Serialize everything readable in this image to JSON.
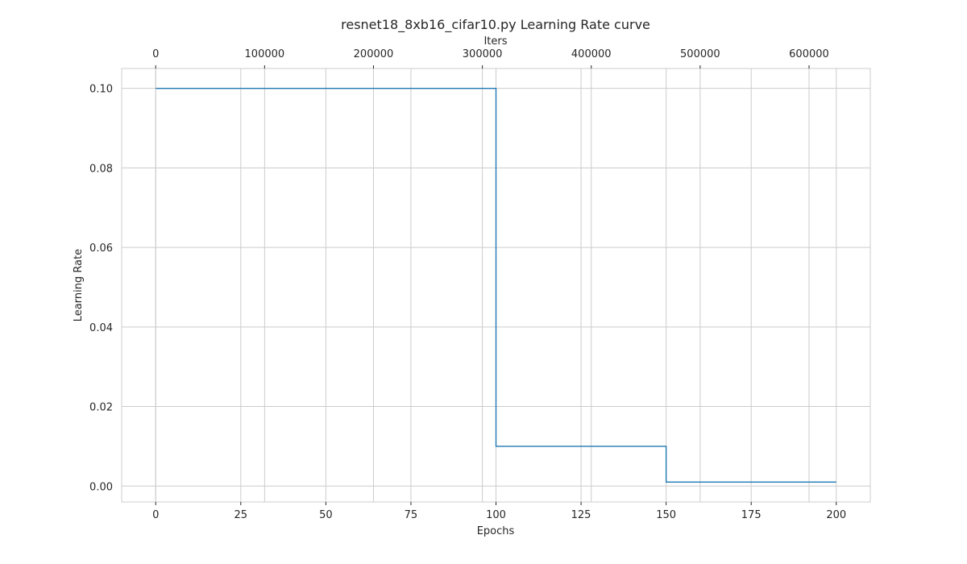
{
  "chart_data": {
    "type": "line",
    "title": "resnet18_8xb16_cifar10.py Learning Rate curve",
    "xlabel": "Epochs",
    "ylabel": "Learning Rate",
    "x2label": "Iters",
    "xlim": [
      -10,
      210
    ],
    "ylim": [
      -0.004,
      0.105
    ],
    "x_ticks": [
      0,
      25,
      50,
      75,
      100,
      125,
      150,
      175,
      200
    ],
    "y_ticks": [
      0.0,
      0.02,
      0.04,
      0.06,
      0.08,
      0.1
    ],
    "y_tick_labels": [
      "0.00",
      "0.02",
      "0.04",
      "0.06",
      "0.08",
      "0.10"
    ],
    "x2_ticks": [
      0,
      100000,
      200000,
      300000,
      400000,
      500000,
      600000
    ],
    "x2_per_x": 3125,
    "grid": true,
    "series": [
      {
        "color": "#1f77b4",
        "step": "post",
        "x": [
          0,
          100,
          150,
          200
        ],
        "y": [
          0.1,
          0.01,
          0.001,
          0.001
        ]
      }
    ]
  }
}
